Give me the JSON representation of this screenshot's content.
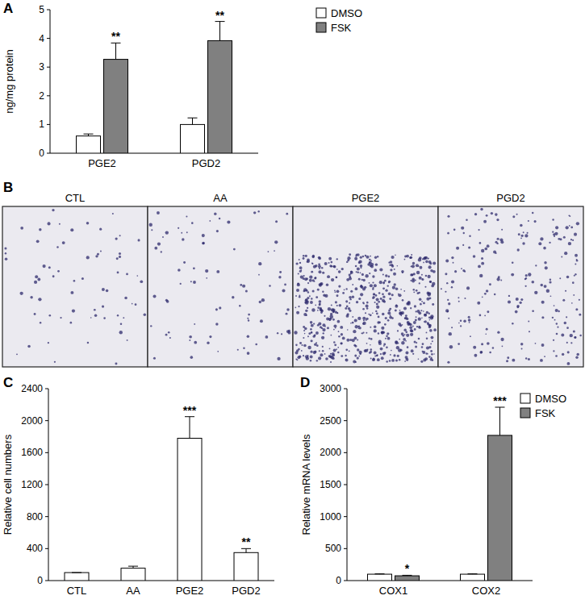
{
  "chart_data": [
    {
      "type": "bar",
      "panel": "A",
      "y_label": "ng/mg protein",
      "categories": [
        "PGE2",
        "PGD2"
      ],
      "series": [
        {
          "name": "DMSO",
          "color": "#ffffff",
          "values": [
            0.6,
            1.0
          ],
          "errors": [
            0.07,
            0.23
          ],
          "significance": [
            null,
            null
          ]
        },
        {
          "name": "FSK",
          "color": "#808080",
          "values": [
            3.27,
            3.92
          ],
          "errors": [
            0.57,
            0.67
          ],
          "significance": [
            "**",
            "**"
          ]
        }
      ],
      "ylim": [
        0,
        5
      ],
      "yticks": [
        0,
        1,
        2,
        3,
        4,
        5
      ],
      "legend": "right"
    },
    {
      "type": "bar",
      "panel": "C",
      "y_label": "Relative cell numbers",
      "categories": [
        "CTL",
        "AA",
        "PGE2",
        "PGD2"
      ],
      "values": [
        100,
        155,
        1780,
        350
      ],
      "errors": [
        0,
        25,
        270,
        50
      ],
      "significance": [
        null,
        null,
        "***",
        "**"
      ],
      "color": "#ffffff",
      "ylim": [
        0,
        2400
      ],
      "yticks": [
        0,
        400,
        800,
        1200,
        1600,
        2000,
        2400
      ]
    },
    {
      "type": "bar",
      "panel": "D",
      "y_label": "Relative mRNA levels",
      "categories": [
        "COX1",
        "COX2"
      ],
      "series": [
        {
          "name": "DMSO",
          "color": "#ffffff",
          "values": [
            100,
            100
          ],
          "errors": [
            5,
            5
          ],
          "significance": [
            null,
            null
          ]
        },
        {
          "name": "FSK",
          "color": "#808080",
          "values": [
            75,
            2270
          ],
          "errors": [
            8,
            440
          ],
          "significance": [
            "*",
            "***"
          ]
        }
      ],
      "ylim": [
        0,
        3000
      ],
      "yticks": [
        0,
        500,
        1000,
        1500,
        2000,
        2500,
        3000
      ],
      "legend": "right"
    }
  ],
  "images": {
    "panel": "B",
    "labels": [
      "CTL",
      "AA",
      "PGE2",
      "PGD2"
    ]
  }
}
